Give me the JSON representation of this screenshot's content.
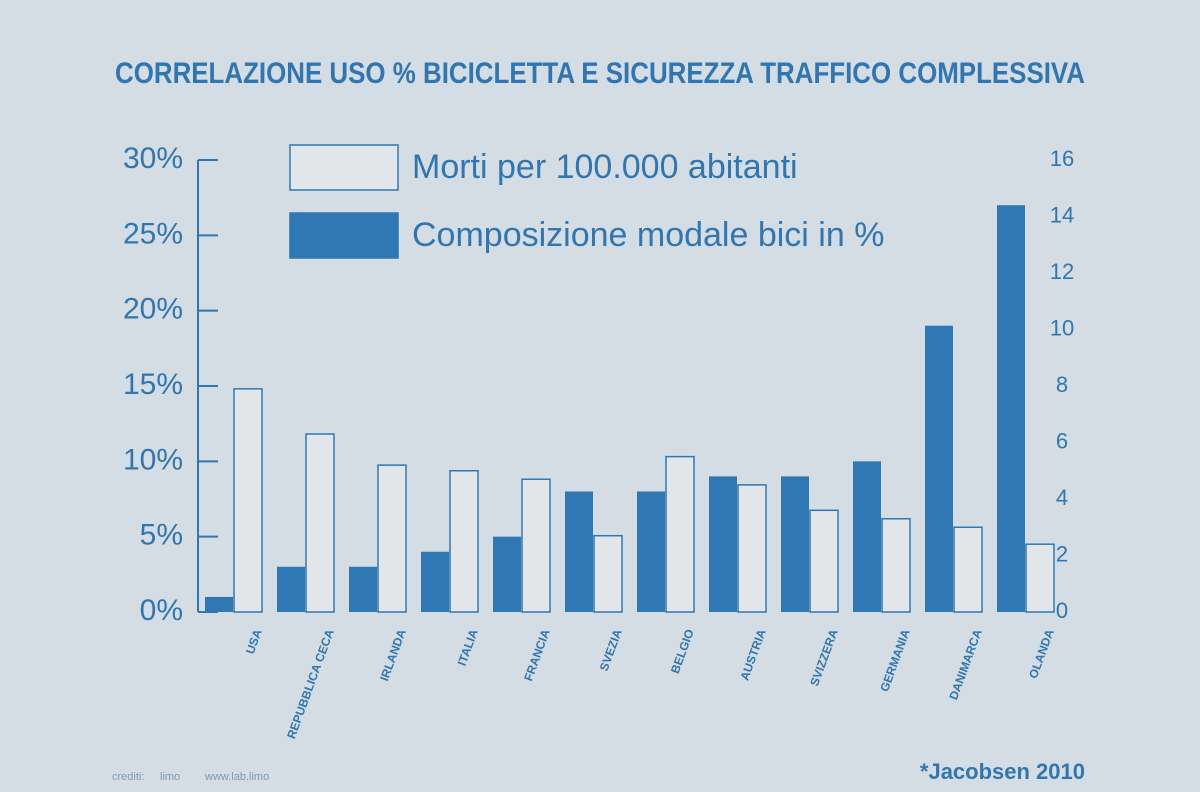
{
  "chart_data": {
    "type": "bar",
    "title": "CORRELAZIONE USO % BICICLETTA E SICUREZZA TRAFFICO COMPLESSIVA",
    "categories": [
      "USA",
      "REPUBBLICA CECA",
      "IRLANDA",
      "ITALIA",
      "FRANCIA",
      "SVEZIA",
      "BELGIO",
      "AUSTRIA",
      "SVIZZERA",
      "GERMANIA",
      "DANIMARCA",
      "OLANDA"
    ],
    "series": [
      {
        "name": "Composizione modale bici in %",
        "color": "#2f78b4",
        "values": [
          1,
          3,
          3,
          4,
          5,
          8,
          8,
          9,
          9,
          10,
          19,
          27
        ]
      },
      {
        "name": "Morti per 100.000 abitanti",
        "color": "#e2e6e9",
        "axis": "y2",
        "values": [
          7.9,
          6.3,
          5.2,
          5.0,
          4.7,
          2.7,
          5.5,
          4.5,
          3.6,
          3.3,
          3.0,
          2.4
        ]
      }
    ],
    "ylim": [
      0,
      30
    ],
    "yticks": [
      {
        "value": 0,
        "label": "0%"
      },
      {
        "value": 5,
        "label": "5%"
      },
      {
        "value": 10,
        "label": "10%"
      },
      {
        "value": 15,
        "label": "15%"
      },
      {
        "value": 20,
        "label": "20%"
      },
      {
        "value": 25,
        "label": "25%"
      },
      {
        "value": 30,
        "label": "30%"
      }
    ],
    "y2lim": [
      0,
      16
    ],
    "y2ticks": [
      0,
      2,
      4,
      6,
      8,
      10,
      12,
      14,
      16
    ],
    "legend": "top-left"
  },
  "footer": {
    "credits": "crediti:",
    "logo": "limo",
    "url": "www.lab.limo",
    "source": "*Jacobsen 2010"
  }
}
